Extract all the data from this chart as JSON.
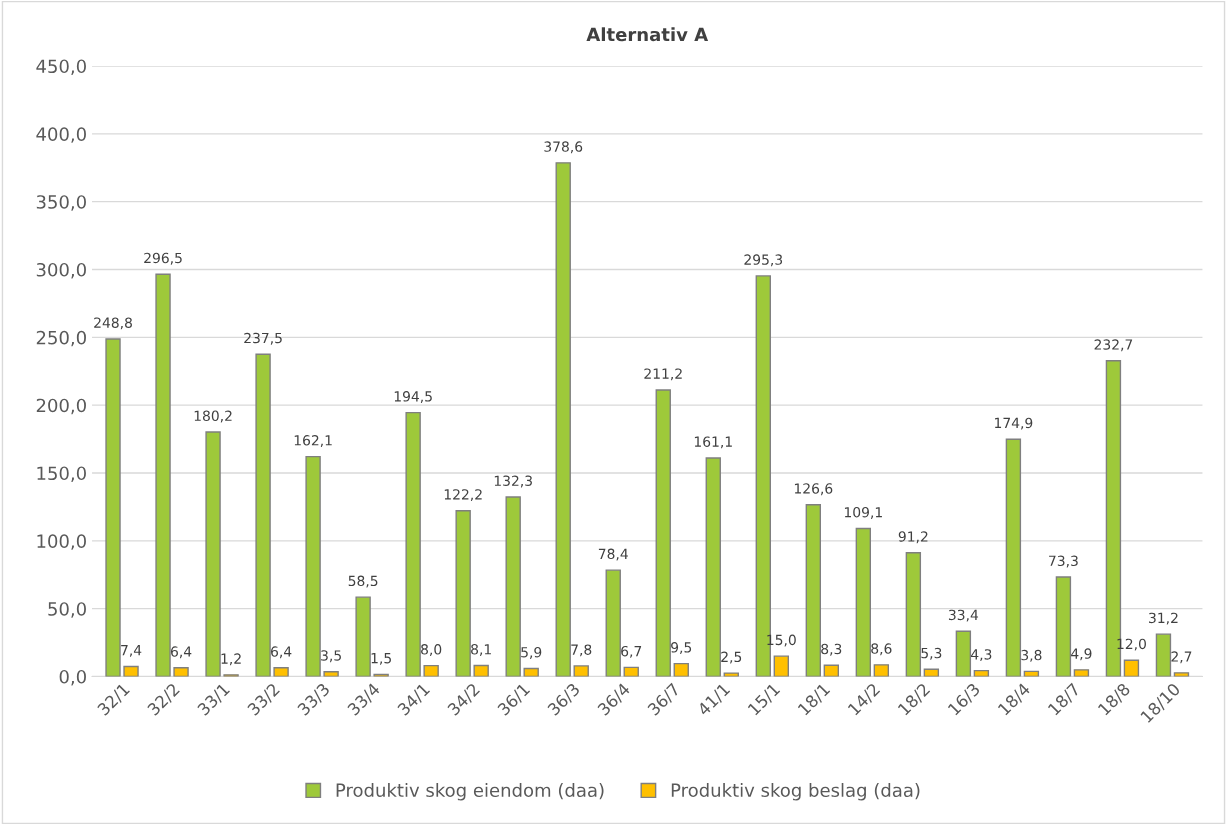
{
  "chart_data": {
    "type": "bar",
    "title": "Alternativ A",
    "categories": [
      "32/1",
      "32/2",
      "33/1",
      "33/2",
      "33/3",
      "33/4",
      "34/1",
      "34/2",
      "36/1",
      "36/3",
      "36/4",
      "36/7",
      "41/1",
      "15/1",
      "18/1",
      "14/2",
      "18/2",
      "16/3",
      "18/4",
      "18/7",
      "18/8",
      "18/10"
    ],
    "series": [
      {
        "name": "Produktiv skog eiendom (daa)",
        "color": "#9ec93a",
        "values": [
          248.8,
          296.5,
          180.2,
          237.5,
          162.1,
          58.5,
          194.5,
          122.2,
          132.3,
          378.6,
          78.4,
          211.2,
          161.1,
          295.3,
          126.6,
          109.1,
          91.2,
          33.4,
          174.9,
          73.3,
          232.7,
          31.2
        ],
        "value_labels": [
          "248,8",
          "296,5",
          "180,2",
          "237,5",
          "162,1",
          "58,5",
          "194,5",
          "122,2",
          "132,3",
          "378,6",
          "78,4",
          "211,2",
          "161,1",
          "295,3",
          "126,6",
          "109,1",
          "91,2",
          "33,4",
          "174,9",
          "73,3",
          "232,7",
          "31,2"
        ]
      },
      {
        "name": "Produktiv skog beslag (daa)",
        "color": "#ffc000",
        "values": [
          7.4,
          6.4,
          1.2,
          6.4,
          3.5,
          1.5,
          8.0,
          8.1,
          5.9,
          7.8,
          6.7,
          9.5,
          2.5,
          15.0,
          8.3,
          8.6,
          5.3,
          4.3,
          3.8,
          4.9,
          12.0,
          2.7
        ],
        "value_labels": [
          "7,4",
          "6,4",
          "1,2",
          "6,4",
          "3,5",
          "1,5",
          "8,0",
          "8,1",
          "5,9",
          "7,8",
          "6,7",
          "9,5",
          "2,5",
          "15,0",
          "8,3",
          "8,6",
          "5,3",
          "4,3",
          "3,8",
          "4,9",
          "12,0",
          "2,7"
        ]
      }
    ],
    "ylim": [
      0,
      450
    ],
    "yticks": [
      {
        "value": 0,
        "label": "0,0"
      },
      {
        "value": 50,
        "label": "50,0"
      },
      {
        "value": 100,
        "label": "100,0"
      },
      {
        "value": 150,
        "label": "150,0"
      },
      {
        "value": 200,
        "label": "200,0"
      },
      {
        "value": 250,
        "label": "250,0"
      },
      {
        "value": 300,
        "label": "300,0"
      },
      {
        "value": 350,
        "label": "350,0"
      },
      {
        "value": 400,
        "label": "400,0"
      },
      {
        "value": 450,
        "label": "450,0"
      }
    ],
    "grid": "y",
    "legend": "bottom"
  }
}
